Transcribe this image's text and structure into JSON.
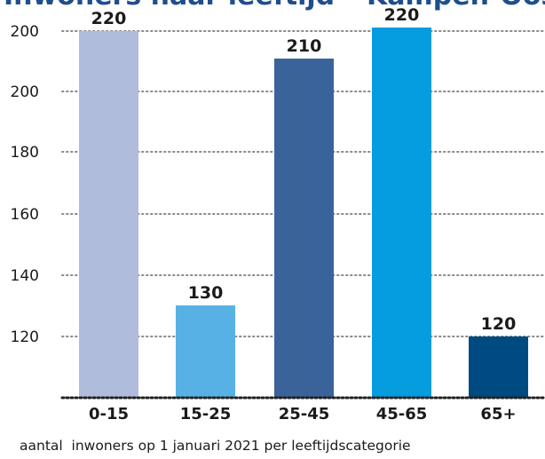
{
  "header": {
    "title": "Inwoners naar leeftijd – Kampen-Oost"
  },
  "footer": {
    "caption": "aantal  inwoners op 1 januari 2021 per leeftijdscategorie"
  },
  "chart_data": {
    "type": "bar",
    "categories": [
      "0-15",
      "15-25",
      "25-45",
      "45-65",
      "65+"
    ],
    "values": [
      220,
      130,
      210,
      220,
      120
    ],
    "data_labels": [
      "220",
      "130",
      "210",
      "220",
      "120"
    ],
    "y_tick_labels": [
      "120",
      "140",
      "160",
      "180",
      "200",
      "200"
    ],
    "colors": [
      "#b0bcdc",
      "#58b1e5",
      "#3a6399",
      "#059ddd",
      "#004a82"
    ],
    "grid": true
  }
}
